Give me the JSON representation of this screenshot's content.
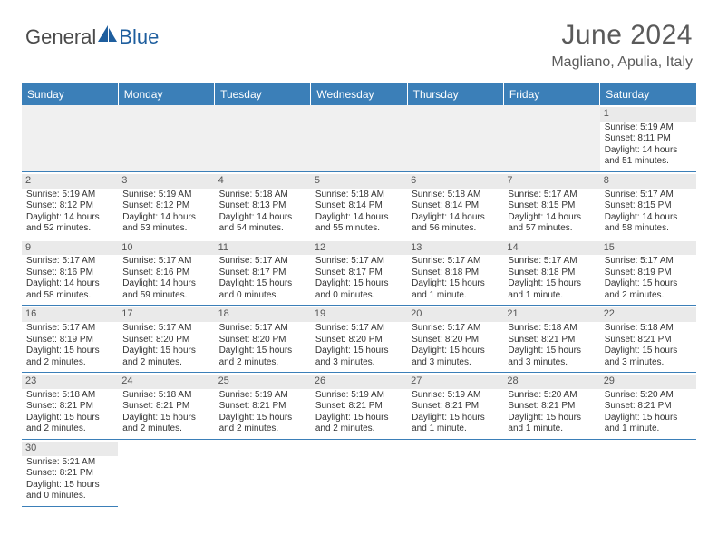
{
  "logo": {
    "text1": "General",
    "text2": "Blue",
    "sail_color": "#1e5e9e",
    "text_color": "#4a4a4a"
  },
  "title": "June 2024",
  "location": "Magliano, Apulia, Italy",
  "colors": {
    "header_bg": "#3b7fb8",
    "header_fg": "#ffffff",
    "daynum_bg": "#eaeaea",
    "blank_bg": "#f0f0f0",
    "cell_border": "#3b7fb8",
    "text": "#333333"
  },
  "weekdays": [
    "Sunday",
    "Monday",
    "Tuesday",
    "Wednesday",
    "Thursday",
    "Friday",
    "Saturday"
  ],
  "weeks": [
    [
      null,
      null,
      null,
      null,
      null,
      null,
      {
        "n": "1",
        "sr": "5:19 AM",
        "ss": "8:11 PM",
        "dl": "14 hours and 51 minutes."
      }
    ],
    [
      {
        "n": "2",
        "sr": "5:19 AM",
        "ss": "8:12 PM",
        "dl": "14 hours and 52 minutes."
      },
      {
        "n": "3",
        "sr": "5:19 AM",
        "ss": "8:12 PM",
        "dl": "14 hours and 53 minutes."
      },
      {
        "n": "4",
        "sr": "5:18 AM",
        "ss": "8:13 PM",
        "dl": "14 hours and 54 minutes."
      },
      {
        "n": "5",
        "sr": "5:18 AM",
        "ss": "8:14 PM",
        "dl": "14 hours and 55 minutes."
      },
      {
        "n": "6",
        "sr": "5:18 AM",
        "ss": "8:14 PM",
        "dl": "14 hours and 56 minutes."
      },
      {
        "n": "7",
        "sr": "5:17 AM",
        "ss": "8:15 PM",
        "dl": "14 hours and 57 minutes."
      },
      {
        "n": "8",
        "sr": "5:17 AM",
        "ss": "8:15 PM",
        "dl": "14 hours and 58 minutes."
      }
    ],
    [
      {
        "n": "9",
        "sr": "5:17 AM",
        "ss": "8:16 PM",
        "dl": "14 hours and 58 minutes."
      },
      {
        "n": "10",
        "sr": "5:17 AM",
        "ss": "8:16 PM",
        "dl": "14 hours and 59 minutes."
      },
      {
        "n": "11",
        "sr": "5:17 AM",
        "ss": "8:17 PM",
        "dl": "15 hours and 0 minutes."
      },
      {
        "n": "12",
        "sr": "5:17 AM",
        "ss": "8:17 PM",
        "dl": "15 hours and 0 minutes."
      },
      {
        "n": "13",
        "sr": "5:17 AM",
        "ss": "8:18 PM",
        "dl": "15 hours and 1 minute."
      },
      {
        "n": "14",
        "sr": "5:17 AM",
        "ss": "8:18 PM",
        "dl": "15 hours and 1 minute."
      },
      {
        "n": "15",
        "sr": "5:17 AM",
        "ss": "8:19 PM",
        "dl": "15 hours and 2 minutes."
      }
    ],
    [
      {
        "n": "16",
        "sr": "5:17 AM",
        "ss": "8:19 PM",
        "dl": "15 hours and 2 minutes."
      },
      {
        "n": "17",
        "sr": "5:17 AM",
        "ss": "8:20 PM",
        "dl": "15 hours and 2 minutes."
      },
      {
        "n": "18",
        "sr": "5:17 AM",
        "ss": "8:20 PM",
        "dl": "15 hours and 2 minutes."
      },
      {
        "n": "19",
        "sr": "5:17 AM",
        "ss": "8:20 PM",
        "dl": "15 hours and 3 minutes."
      },
      {
        "n": "20",
        "sr": "5:17 AM",
        "ss": "8:20 PM",
        "dl": "15 hours and 3 minutes."
      },
      {
        "n": "21",
        "sr": "5:18 AM",
        "ss": "8:21 PM",
        "dl": "15 hours and 3 minutes."
      },
      {
        "n": "22",
        "sr": "5:18 AM",
        "ss": "8:21 PM",
        "dl": "15 hours and 3 minutes."
      }
    ],
    [
      {
        "n": "23",
        "sr": "5:18 AM",
        "ss": "8:21 PM",
        "dl": "15 hours and 2 minutes."
      },
      {
        "n": "24",
        "sr": "5:18 AM",
        "ss": "8:21 PM",
        "dl": "15 hours and 2 minutes."
      },
      {
        "n": "25",
        "sr": "5:19 AM",
        "ss": "8:21 PM",
        "dl": "15 hours and 2 minutes."
      },
      {
        "n": "26",
        "sr": "5:19 AM",
        "ss": "8:21 PM",
        "dl": "15 hours and 2 minutes."
      },
      {
        "n": "27",
        "sr": "5:19 AM",
        "ss": "8:21 PM",
        "dl": "15 hours and 1 minute."
      },
      {
        "n": "28",
        "sr": "5:20 AM",
        "ss": "8:21 PM",
        "dl": "15 hours and 1 minute."
      },
      {
        "n": "29",
        "sr": "5:20 AM",
        "ss": "8:21 PM",
        "dl": "15 hours and 1 minute."
      }
    ],
    [
      {
        "n": "30",
        "sr": "5:21 AM",
        "ss": "8:21 PM",
        "dl": "15 hours and 0 minutes."
      },
      null,
      null,
      null,
      null,
      null,
      null
    ]
  ],
  "labels": {
    "sunrise": "Sunrise: ",
    "sunset": "Sunset: ",
    "daylight": "Daylight: "
  }
}
